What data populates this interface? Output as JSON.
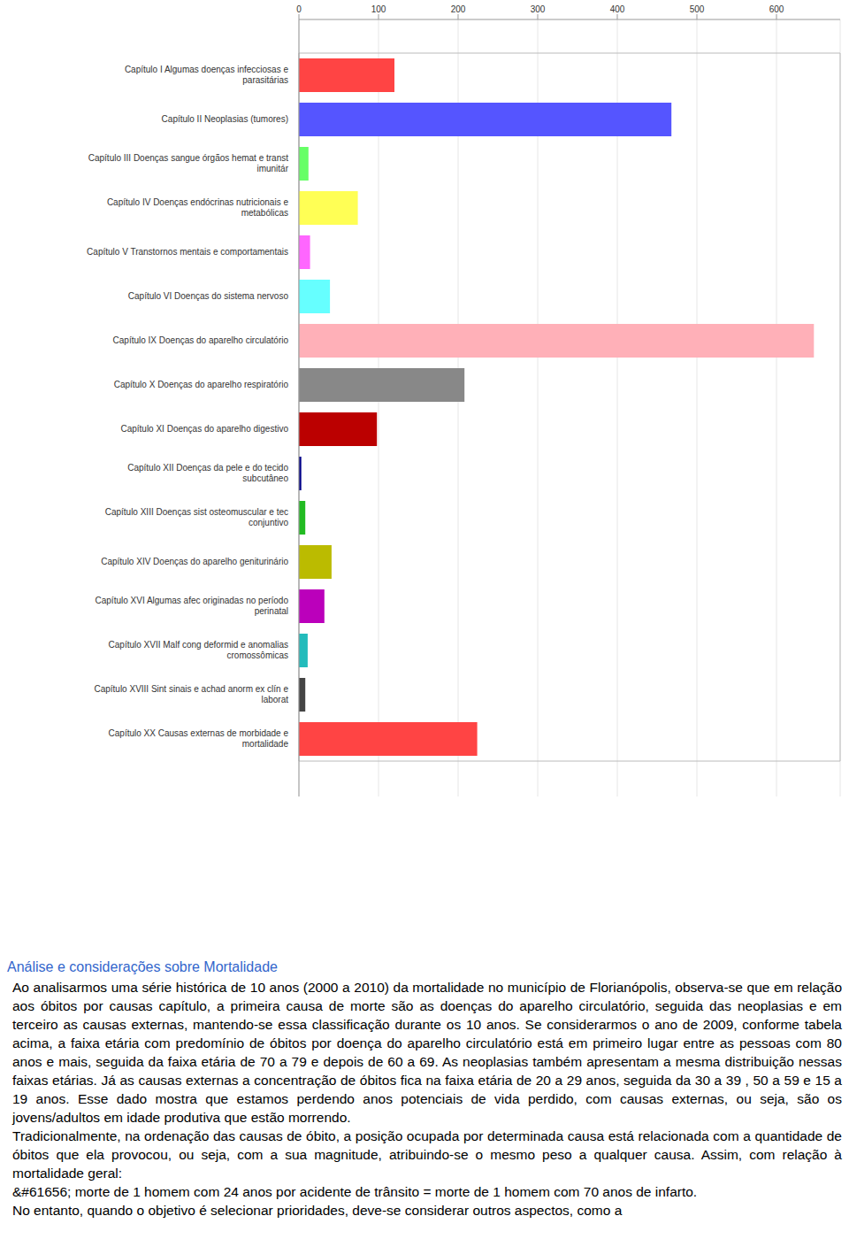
{
  "chart_data": {
    "type": "bar",
    "orientation": "horizontal",
    "categories": [
      "Capítulo I Algumas doenças infecciosas e parasitárias",
      "Capítulo II Neoplasias (tumores)",
      "Capítulo III Doenças sangue órgãos hemat e transt imunitár",
      "Capítulo IV Doenças endócrinas nutricionais e metabólicas",
      "Capítulo V Transtornos mentais e comportamentais",
      "Capítulo VI Doenças do sistema nervoso",
      "Capítulo IX Doenças do aparelho circulatório",
      "Capítulo X Doenças do aparelho respiratório",
      "Capítulo XI Doenças do aparelho digestivo",
      "Capítulo XII Doenças da pele e do tecido subcutâneo",
      "Capítulo XIII Doenças sist osteomuscular e tec conjuntivo",
      "Capítulo XIV Doenças do aparelho geniturinário",
      "Capítulo XVI Algumas afec originadas no período perinatal",
      "Capítulo XVII Malf cong deformid e anomalias cromossômicas",
      "Capítulo XVIII Sint sinais e achad anorm ex clín e laborat",
      "Capítulo XX Causas externas de morbidade e mortalidade"
    ],
    "values": [
      120,
      468,
      12,
      74,
      14,
      39,
      647,
      208,
      98,
      3,
      8,
      41,
      32,
      11,
      8,
      224
    ],
    "colors": [
      "#ff4444",
      "#5555ff",
      "#66ff66",
      "#ffff55",
      "#ff66ff",
      "#66ffff",
      "#ffb0b8",
      "#888888",
      "#bb0000",
      "#000088",
      "#22bb22",
      "#bbbb00",
      "#bb00bb",
      "#22bbbb",
      "#444444",
      "#ff4444"
    ],
    "xlim": [
      0,
      680
    ],
    "xticks": [
      0,
      100,
      200,
      300,
      400,
      500,
      600
    ],
    "grid": true
  },
  "document": {
    "heading": "Análise e considerações sobre Mortalidade",
    "paragraphs": [
      "Ao analisarmos uma série histórica de 10 anos (2000 a 2010) da mortalidade no município de Florianópolis, observa-se que em relação aos óbitos por causas capítulo, a primeira causa de morte são as doenças do aparelho circulatório, seguida das neoplasias e em terceiro as causas externas, mantendo-se essa classificação durante os 10 anos. Se considerarmos o ano de 2009, conforme tabela acima, a faixa etária com predomínio de óbitos por doença do aparelho circulatório está em primeiro lugar entre as pessoas com 80 anos e mais, seguida da faixa etária de 70 a 79 e depois de 60 a 69. As neoplasias também apresentam a mesma distribuição nessas faixas etárias. Já as causas externas a concentração de óbitos fica na faixa etária de 20 a 29 anos, seguida da 30 a 39 , 50 a 59 e 15 a 19 anos. Esse dado mostra que estamos perdendo anos potenciais de vida perdido, com causas externas, ou seja, são os jovens/adultos em idade produtiva que estão morrendo.",
      "Tradicionalmente, na ordenação das causas de óbito, a posição ocupada por determinada causa está relacionada com a quantidade de óbitos que ela provocou, ou seja, com a sua magnitude, atribuindo-se o mesmo peso a qualquer causa. Assim, com relação à mortalidade geral:",
      "&#61656; morte de 1 homem com 24 anos por acidente de trânsito = morte de 1 homem com 70 anos de infarto.",
      "No entanto, quando o objetivo é selecionar prioridades, deve-se considerar outros aspectos, como a"
    ]
  }
}
